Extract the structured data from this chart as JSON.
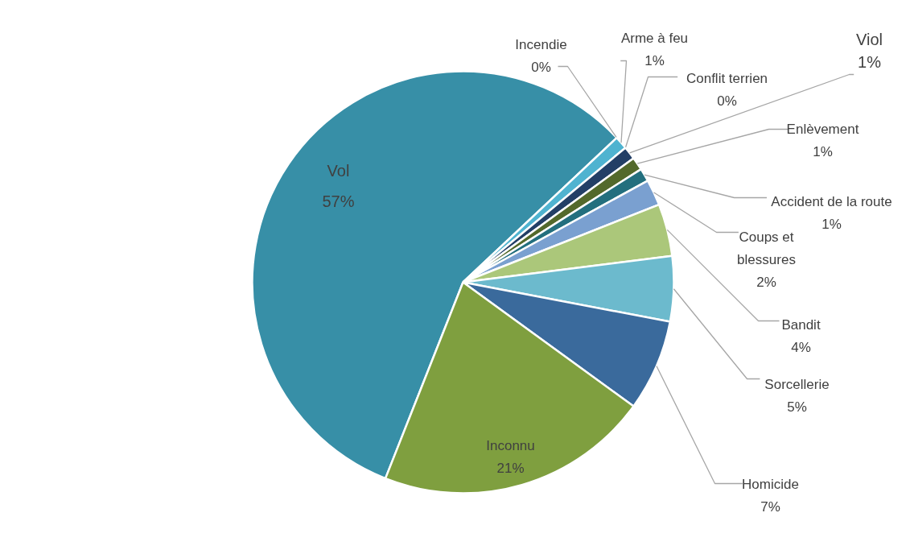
{
  "chart_data": {
    "type": "pie",
    "categories": [
      "Vol",
      "Incendie",
      "Arme à feu",
      "Conflit terrien",
      "Viol",
      "Enlèvement",
      "Accident de la route",
      "Coups et blessures",
      "Bandit",
      "Sorcellerie",
      "Homicide",
      "Inconnu"
    ],
    "values": [
      57,
      0,
      1,
      0,
      1,
      1,
      1,
      2,
      4,
      5,
      7,
      21
    ],
    "value_labels": [
      "57%",
      "0%",
      "1%",
      "0%",
      "1%",
      "1%",
      "1%",
      "2%",
      "4%",
      "5%",
      "7%",
      "21%"
    ],
    "colors": [
      "#378fa7",
      "#a7c87a",
      "#4fb3d0",
      "#5fa8c0",
      "#233f66",
      "#53692b",
      "#236f7e",
      "#7aa0d0",
      "#abc77a",
      "#6cbacd",
      "#3a6a9c",
      "#7f9f3f"
    ],
    "legend": false
  }
}
